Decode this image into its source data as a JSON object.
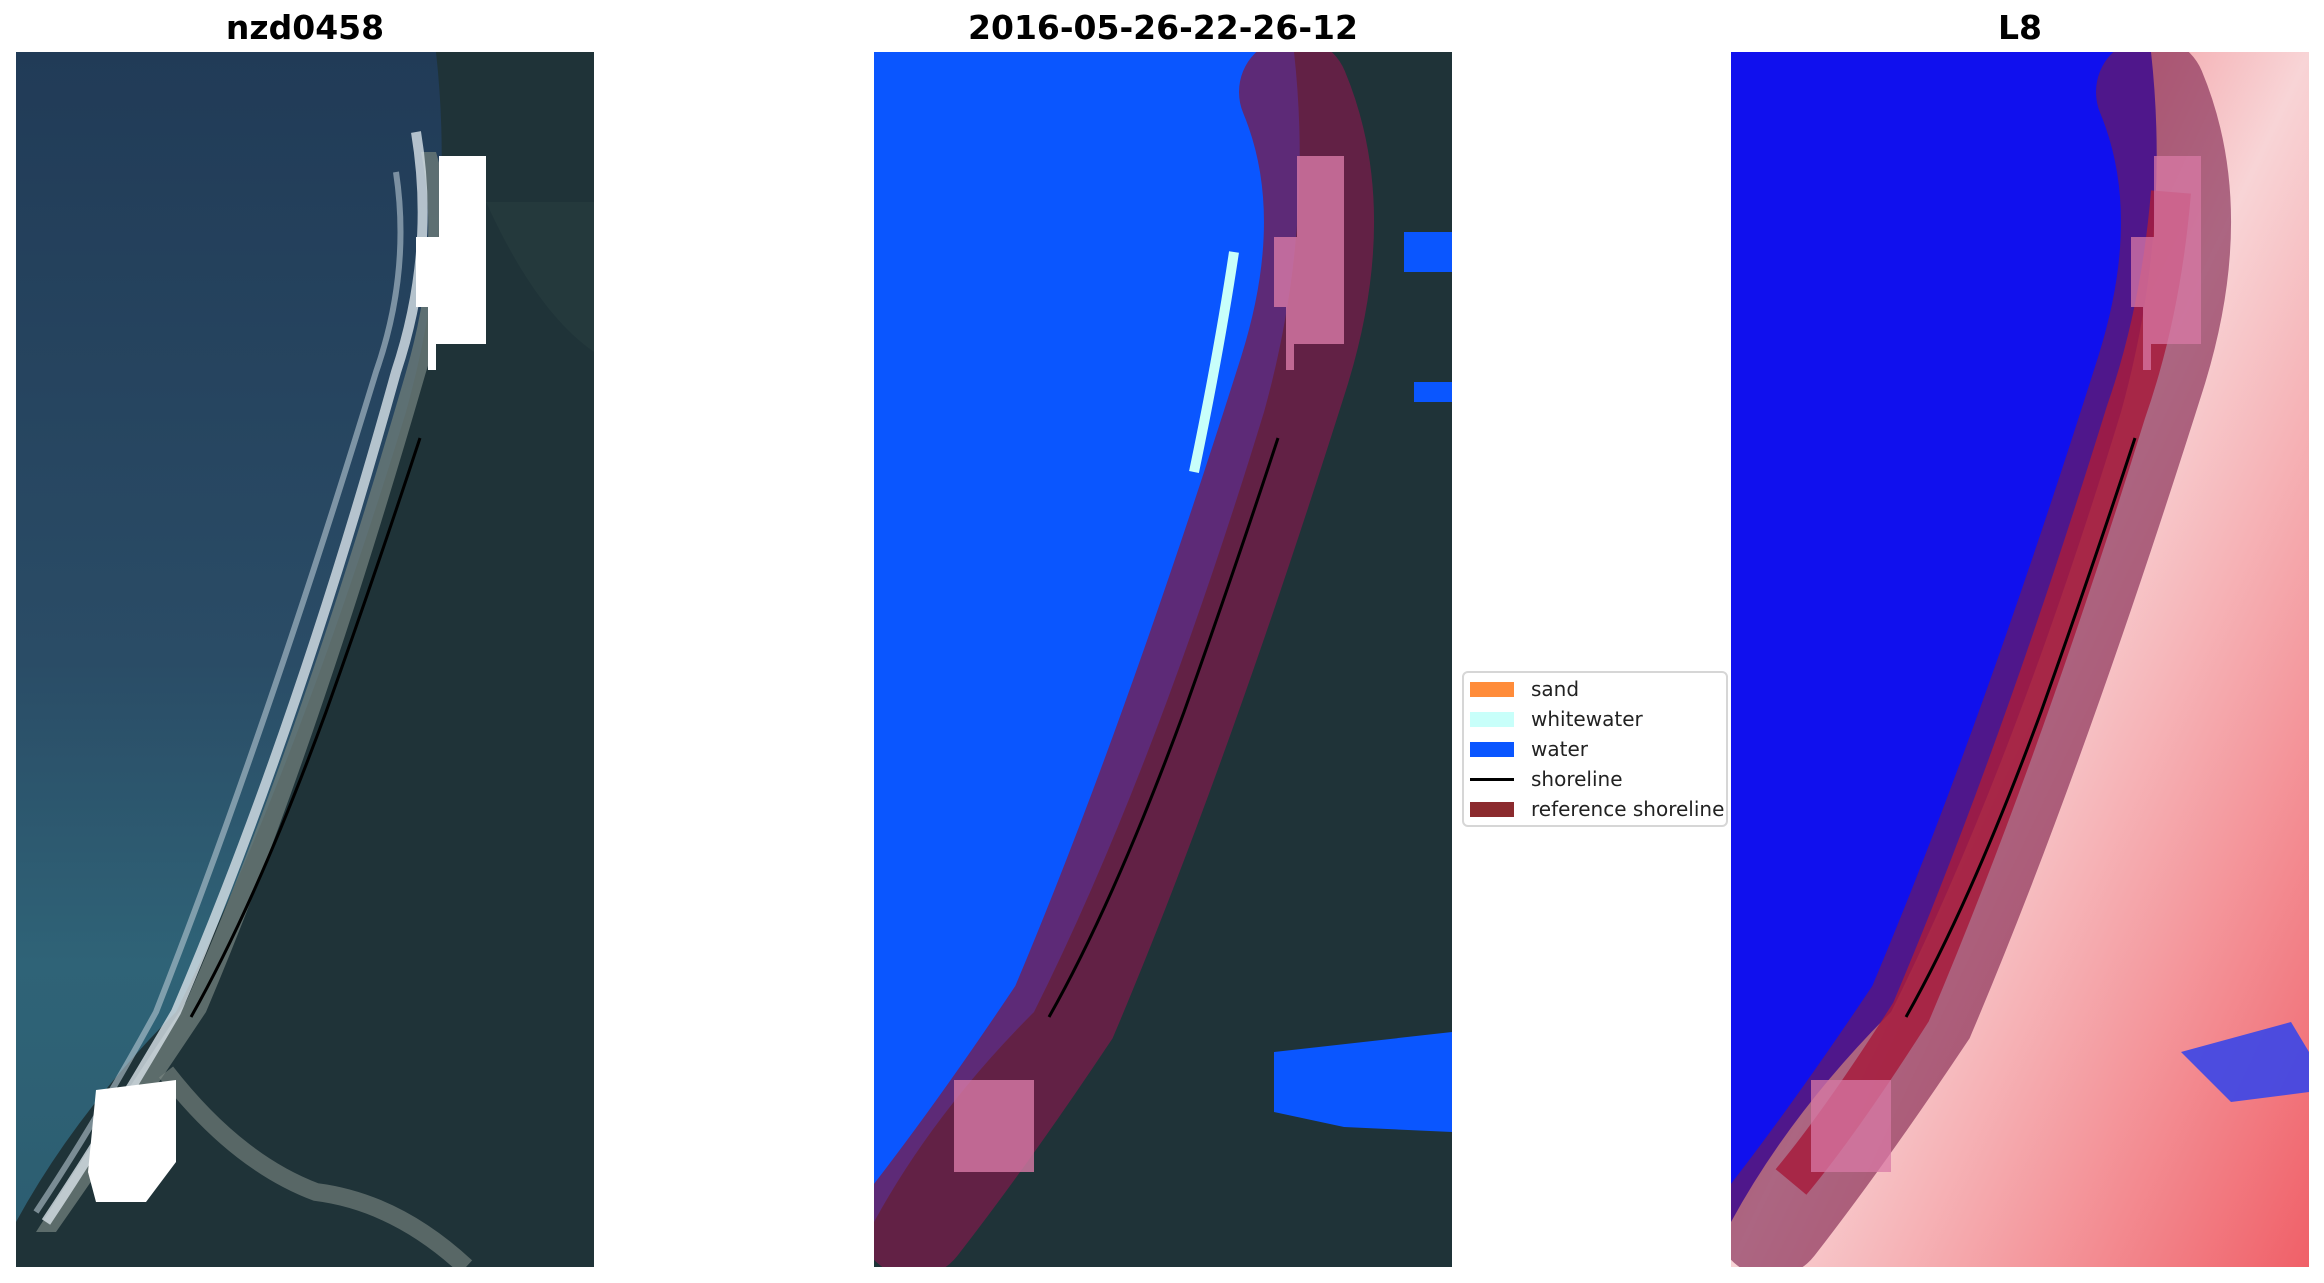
{
  "panels": [
    {
      "title": "nzd0458"
    },
    {
      "title": "2016-05-26-22-26-12"
    },
    {
      "title": "L8"
    }
  ],
  "legend": {
    "items": [
      {
        "label": "sand",
        "color": "#ff8c3a"
      },
      {
        "label": "whitewater",
        "color": "#c8fffa"
      },
      {
        "label": "water",
        "color": "#0a56ff"
      },
      {
        "label": "shoreline",
        "color": "#000000"
      },
      {
        "label": "reference shoreline",
        "color": "#8b2a2e"
      }
    ]
  },
  "colors": {
    "ocean_rgb": "#2a4660",
    "forest": "#1f3338",
    "classified_water": "#0a56ff",
    "buffer": "#7a1c4a",
    "index_water": "#1010ee",
    "index_land": "#f4c8cc"
  }
}
